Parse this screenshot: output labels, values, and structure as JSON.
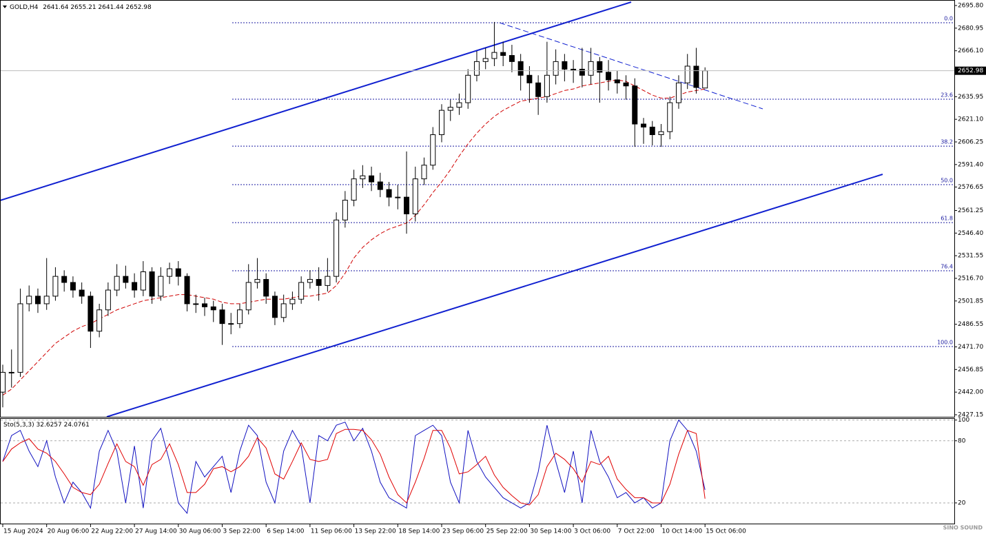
{
  "chart_data": [
    {
      "type": "candlestick",
      "symbol": "GOLD,H4",
      "categories": [
        "15 Aug 2024",
        null,
        null,
        null,
        null,
        "20 Aug 06:00",
        null,
        null,
        null,
        null,
        "22 Aug 22:00",
        null,
        null,
        null,
        null,
        "27 Aug 14:00",
        null,
        null,
        null,
        null,
        "30 Aug 06:00",
        null,
        null,
        null,
        null,
        "3 Sep 22:00",
        null,
        null,
        null,
        null,
        "6 Sep 14:00",
        null,
        null,
        null,
        null,
        "11 Sep 06:00",
        null,
        null,
        null,
        null,
        "13 Sep 22:00",
        null,
        null,
        null,
        null,
        "18 Sep 14:00",
        null,
        null,
        null,
        null,
        "23 Sep 06:00",
        null,
        null,
        null,
        null,
        "25 Sep 22:00",
        null,
        null,
        null,
        null,
        "30 Sep 14:00",
        null,
        null,
        null,
        null,
        "3 Oct 06:00",
        null,
        null,
        null,
        null,
        "7 Oct 22:00",
        null,
        null,
        null,
        null,
        "10 Oct 14:00",
        null,
        null,
        null,
        null,
        "15 Oct 06:00"
      ],
      "open": [
        2442,
        2455,
        2455,
        2500,
        2505,
        2500,
        2505,
        2518,
        2514,
        2509,
        2505,
        2482,
        2496,
        2509,
        2518,
        2514,
        2509,
        2521,
        2505,
        2518,
        2523,
        2518,
        2500,
        2500,
        2498,
        2496,
        2487,
        2487,
        2496,
        2514,
        2516,
        2505,
        2491,
        2500,
        2503,
        2514,
        2516,
        2512,
        2518,
        2555,
        2568,
        2582,
        2584,
        2580,
        2575,
        2570,
        2570,
        2559,
        2582,
        2591,
        2611,
        2627,
        2629,
        2632,
        2650,
        2659,
        2661,
        2665,
        2663,
        2659,
        2650,
        2645,
        2636,
        2650,
        2659,
        2654,
        2654,
        2650,
        2659,
        2652,
        2647,
        2645,
        2643,
        2618,
        2616,
        2611,
        2613,
        2632,
        2645,
        2656,
        2641.64
      ],
      "high": [
        2460,
        2470,
        2510,
        2512,
        2510,
        2530,
        2524,
        2522,
        2518,
        2514,
        2508,
        2500,
        2514,
        2526,
        2525,
        2520,
        2528,
        2524,
        2524,
        2527,
        2528,
        2520,
        2506,
        2504,
        2502,
        2500,
        2494,
        2500,
        2526,
        2530,
        2520,
        2508,
        2506,
        2508,
        2518,
        2522,
        2524,
        2530,
        2560,
        2574,
        2588,
        2591,
        2590,
        2586,
        2580,
        2578,
        2600,
        2590,
        2596,
        2616,
        2631,
        2634,
        2638,
        2654,
        2666,
        2668,
        2685,
        2672,
        2670,
        2664,
        2656,
        2650,
        2672,
        2667,
        2664,
        2660,
        2668,
        2668,
        2662,
        2660,
        2653,
        2650,
        2648,
        2622,
        2620,
        2618,
        2636,
        2650,
        2664,
        2668,
        2655.21
      ],
      "low": [
        2432,
        2445,
        2452,
        2495,
        2494,
        2496,
        2502,
        2508,
        2504,
        2500,
        2471,
        2478,
        2492,
        2505,
        2510,
        2504,
        2505,
        2500,
        2502,
        2513,
        2512,
        2495,
        2494,
        2492,
        2488,
        2473,
        2480,
        2484,
        2493,
        2510,
        2500,
        2486,
        2488,
        2496,
        2500,
        2510,
        2502,
        2508,
        2514,
        2550,
        2564,
        2576,
        2574,
        2570,
        2564,
        2562,
        2546,
        2554,
        2578,
        2588,
        2606,
        2620,
        2624,
        2628,
        2646,
        2654,
        2656,
        2656,
        2652,
        2640,
        2632,
        2624,
        2632,
        2644,
        2646,
        2645,
        2642,
        2644,
        2632,
        2640,
        2638,
        2634,
        2603,
        2605,
        2604,
        2603,
        2608,
        2628,
        2641,
        2638,
        2641.44
      ],
      "close": [
        2455,
        2455,
        2500,
        2505,
        2500,
        2505,
        2518,
        2514,
        2509,
        2505,
        2482,
        2496,
        2509,
        2518,
        2514,
        2509,
        2521,
        2505,
        2518,
        2523,
        2518,
        2500,
        2500,
        2498,
        2496,
        2487,
        2487,
        2496,
        2514,
        2516,
        2505,
        2491,
        2500,
        2503,
        2514,
        2516,
        2512,
        2518,
        2555,
        2568,
        2582,
        2584,
        2580,
        2575,
        2570,
        2570,
        2559,
        2582,
        2591,
        2611,
        2627,
        2629,
        2632,
        2650,
        2659,
        2661,
        2665,
        2663,
        2659,
        2650,
        2645,
        2636,
        2650,
        2659,
        2654,
        2654,
        2650,
        2659,
        2652,
        2647,
        2645,
        2643,
        2618,
        2616,
        2611,
        2613,
        2632,
        2645,
        2656,
        2642,
        2652.98
      ],
      "ma_values": [
        2440,
        2444,
        2450,
        2456,
        2462,
        2468,
        2474,
        2478,
        2482,
        2485,
        2487,
        2490,
        2493,
        2496,
        2498,
        2500,
        2502,
        2503,
        2504,
        2505,
        2506,
        2506,
        2505,
        2504,
        2503,
        2501,
        2500,
        2500,
        2501,
        2502,
        2503,
        2503,
        2503,
        2504,
        2505,
        2505,
        2506,
        2507,
        2512,
        2520,
        2530,
        2537,
        2542,
        2546,
        2549,
        2551,
        2553,
        2558,
        2565,
        2573,
        2580,
        2588,
        2597,
        2605,
        2612,
        2618,
        2623,
        2627,
        2630,
        2633,
        2634,
        2635,
        2636,
        2638,
        2640,
        2641,
        2643,
        2644,
        2645,
        2646,
        2647,
        2646,
        2643,
        2640,
        2637,
        2635,
        2635,
        2637,
        2639,
        2640,
        2641
      ],
      "ma_color": "#d00000",
      "levels": [
        {
          "label": "0.0",
          "value": 2684.5
        },
        {
          "label": "23.6",
          "value": 2634.3
        },
        {
          "label": "38.2",
          "value": 2603.5
        },
        {
          "label": "50.0",
          "value": 2578.2
        },
        {
          "label": "61.8",
          "value": 2553.3
        },
        {
          "label": "76.4",
          "value": 2521.7
        },
        {
          "label": "100.0",
          "value": 2471.9
        }
      ],
      "ylim": [
        2427.15,
        2695.8
      ],
      "yticks": [
        {
          "value": 2695.8,
          "label": "2695.80"
        },
        2680.95,
        {
          "value": 2666.1,
          "label": "2666.10"
        },
        2635.95,
        {
          "value": 2621.1,
          "label": "2621.10"
        },
        2606.25,
        {
          "value": 2591.4,
          "label": "2591.40"
        },
        2576.65,
        2561.25,
        {
          "value": 2546.4,
          "label": "2546.40"
        },
        2531.55,
        {
          "value": 2516.7,
          "label": "2516.70"
        },
        2501.85,
        2486.55,
        {
          "value": 2471.7,
          "label": "2471.70"
        },
        2456.85,
        {
          "value": 2442,
          "label": "2442.00"
        },
        2427.15
      ]
    },
    {
      "type": "line",
      "title": "Sto(5,3,3)",
      "series": [
        {
          "color": "#1010c0",
          "values": [
            60,
            85,
            90,
            70,
            55,
            80,
            45,
            20,
            40,
            30,
            15,
            70,
            90,
            70,
            20,
            75,
            15,
            80,
            92,
            60,
            20,
            10,
            60,
            45,
            55,
            65,
            30,
            70,
            95,
            85,
            40,
            20,
            70,
            90,
            75,
            20,
            85,
            80,
            95,
            98,
            80,
            92,
            70,
            40,
            25,
            20,
            15,
            85,
            90,
            95,
            85,
            40,
            20,
            90,
            60,
            45,
            35,
            25,
            20,
            15,
            20,
            50,
            95,
            60,
            30,
            70,
            20,
            90,
            60,
            45,
            25,
            30,
            20,
            25,
            15,
            20,
            80,
            100,
            90,
            70,
            32.6257
          ]
        },
        {
          "color": "#e00000",
          "values": [
            60,
            72,
            78,
            82,
            72,
            68,
            60,
            48,
            35,
            30,
            28,
            38,
            58,
            77,
            60,
            55,
            37,
            57,
            62,
            77,
            57,
            30,
            30,
            38,
            53,
            55,
            50,
            55,
            65,
            83,
            73,
            48,
            43,
            60,
            78,
            62,
            60,
            62,
            87,
            91,
            91,
            90,
            81,
            67,
            45,
            28,
            20,
            40,
            63,
            90,
            90,
            73,
            48,
            50,
            57,
            65,
            47,
            35,
            27,
            20,
            18,
            28,
            55,
            68,
            62,
            53,
            40,
            60,
            57,
            65,
            43,
            33,
            25,
            25,
            20,
            20,
            38,
            67,
            90,
            87,
            24.0761
          ]
        }
      ],
      "ylim": [
        0,
        100
      ],
      "yticks": [
        100,
        80,
        20
      ]
    }
  ],
  "watermark": "SINO SOUND"
}
